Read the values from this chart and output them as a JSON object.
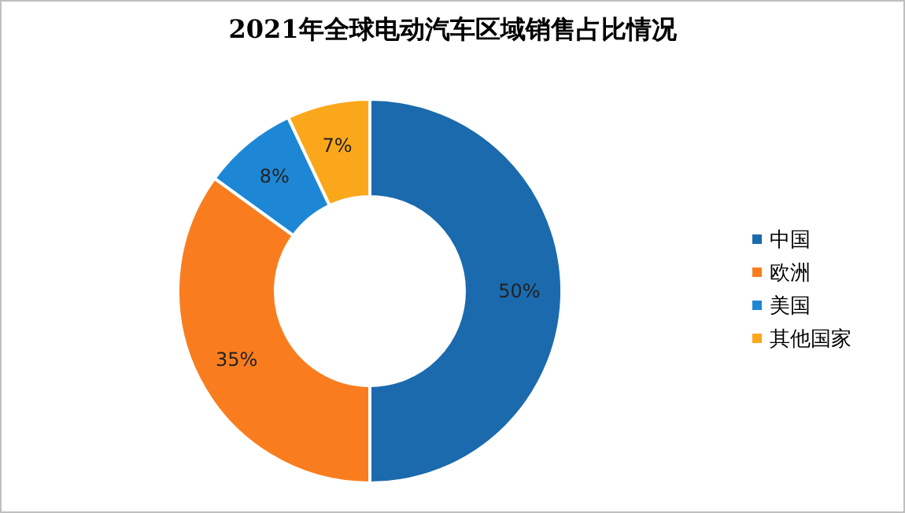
{
  "chart_data": {
    "type": "donut",
    "title": "2021年全球电动汽车区域销售占比情况",
    "categories": [
      "中国",
      "欧洲",
      "美国",
      "其他国家"
    ],
    "values": [
      50,
      35,
      8,
      7
    ],
    "colors": [
      "#1a6aad",
      "#f97d1e",
      "#1d87d6",
      "#fba71b"
    ],
    "value_labels": [
      "50%",
      "35%",
      "8%",
      "7%"
    ],
    "legend": "right"
  }
}
